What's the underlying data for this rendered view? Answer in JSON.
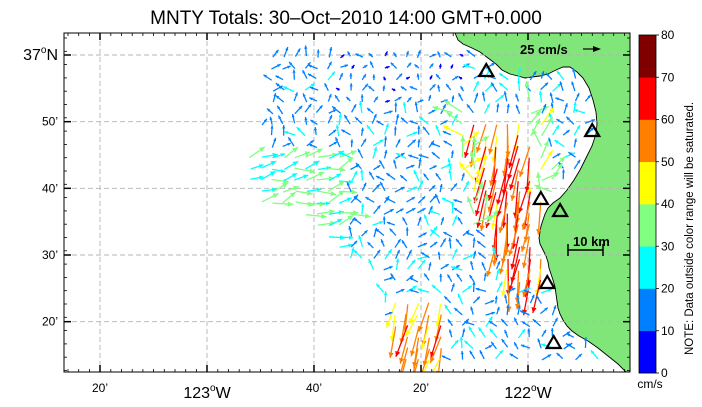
{
  "title": "MNTY Totals: 30–Oct–2010 14:00 GMT+0.000",
  "y_ticks": [
    {
      "label": "37",
      "super": "o",
      "suffix": "N",
      "lat": 37.0
    },
    {
      "label": "50’",
      "lat": 36.8333
    },
    {
      "label": "40’",
      "lat": 36.6667
    },
    {
      "label": "30’",
      "lat": 36.5
    },
    {
      "label": "20’",
      "lat": 36.3333
    }
  ],
  "x_ticks": [
    {
      "label": "20’",
      "lon": -123.3333
    },
    {
      "label": "123",
      "super": "o",
      "suffix": "W",
      "lon": -123.0
    },
    {
      "label": "40’",
      "lon": -122.6667
    },
    {
      "label": "20’",
      "lon": -122.3333
    },
    {
      "label": "122",
      "super": "o",
      "suffix": "W",
      "lon": -122.0
    }
  ],
  "scale_arrow_label": "25 cm/s",
  "scale_bar_label": "10 km",
  "colorbar": {
    "ticks": [
      "0",
      "10",
      "20",
      "30",
      "40",
      "50",
      "60",
      "70",
      "80"
    ],
    "unit": "cm/s",
    "note": "NOTE: Data outside color range will be saturated.",
    "colors": [
      "#0000ff",
      "#0080ff",
      "#00ffff",
      "#80ff80",
      "#ffff00",
      "#ff8000",
      "#ff0000",
      "#800000"
    ]
  },
  "stations": [
    {
      "lon": -122.13,
      "lat": 36.96
    },
    {
      "lon": -121.8,
      "lat": 36.81
    },
    {
      "lon": -121.96,
      "lat": 36.64
    },
    {
      "lon": -121.9,
      "lat": 36.61
    },
    {
      "lon": -121.94,
      "lat": 36.43
    },
    {
      "lon": -121.92,
      "lat": 36.28
    }
  ],
  "colors": {
    "land": "#80e67a",
    "coast": "#000000",
    "grid": "#b4b4b4"
  }
}
